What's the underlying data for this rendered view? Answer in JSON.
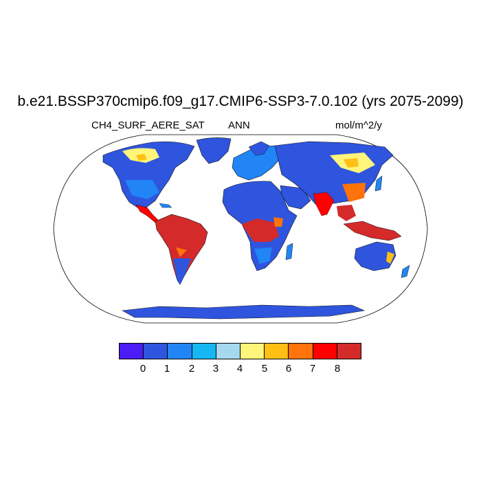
{
  "figure": {
    "title": "b.e21.BSSP370cmip6.f09_g17.CMIP6-SSP3-7.0.102 (yrs 2075-2099)",
    "variable": "CH4_SURF_AERE_SAT",
    "season": "ANN",
    "units": "mol/m^2/y"
  },
  "colorbar": {
    "colors": [
      "#4b1cf5",
      "#2f55de",
      "#2185f5",
      "#15b6f2",
      "#a6d8f0",
      "#fff57a",
      "#ffbf14",
      "#ff730a",
      "#ff0000",
      "#d42a2a"
    ],
    "labels": [
      "0",
      "1",
      "2",
      "3",
      "4",
      "5",
      "6",
      "7",
      "8"
    ]
  }
}
